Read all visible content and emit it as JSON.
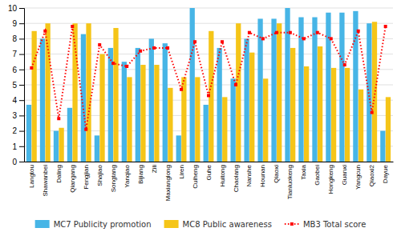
{
  "chart_data": {
    "type": "bar",
    "categories": [
      "Langtou",
      "Shawanbei",
      "Daling",
      "Qiangang",
      "Fengjian",
      "Shajiao",
      "Songtang",
      "Yanqiao",
      "Bijiang",
      "Zili",
      "Maxianglong",
      "Liren",
      "Cuiheng",
      "Guhe",
      "Huitong",
      "Chaolang",
      "Nanshe",
      "Hounan",
      "Qiaoxi",
      "Tianluokeng",
      "Taxia",
      "Gaobei",
      "Hongkeng",
      "Guanxi",
      "Yangcun",
      "Qiaoxi2",
      "Dayue"
    ],
    "series": [
      {
        "name": "MC7 Publicity promotion",
        "color": "#47B5E6",
        "type": "bar",
        "values": [
          3.7,
          8.0,
          2.0,
          3.5,
          8.3,
          1.7,
          7.4,
          6.5,
          7.4,
          8.0,
          7.7,
          1.7,
          10.0,
          3.7,
          7.4,
          5.4,
          8.0,
          9.3,
          9.3,
          10.0,
          9.4,
          9.4,
          9.7,
          9.7,
          9.8,
          9.0,
          2.0
        ]
      },
      {
        "name": "MC8 Public awareness",
        "color": "#F5C518",
        "type": "bar",
        "values": [
          8.5,
          9.0,
          2.2,
          9.0,
          9.0,
          7.0,
          8.7,
          5.5,
          6.3,
          6.3,
          4.8,
          5.5,
          5.5,
          8.5,
          4.2,
          9.0,
          7.1,
          5.4,
          9.0,
          7.4,
          6.2,
          7.5,
          6.1,
          6.1,
          4.7,
          9.1,
          4.2
        ]
      },
      {
        "name": "MB3 Total score",
        "color": "#FF0000",
        "type": "line",
        "marker": "square",
        "line_style": "dotted",
        "values": [
          6.1,
          8.5,
          2.8,
          8.8,
          2.1,
          7.6,
          6.4,
          6.2,
          7.2,
          7.4,
          7.4,
          4.7,
          7.8,
          4.3,
          7.8,
          5.0,
          8.4,
          8.0,
          8.4,
          8.4,
          8.0,
          8.4,
          8.0,
          6.3,
          8.5,
          3.2,
          8.8
        ]
      }
    ],
    "ylim": [
      0,
      10
    ],
    "yticks": [
      0,
      1,
      2,
      3,
      4,
      5,
      6,
      7,
      8,
      9,
      10
    ],
    "grid": true,
    "legend": "bottom"
  }
}
